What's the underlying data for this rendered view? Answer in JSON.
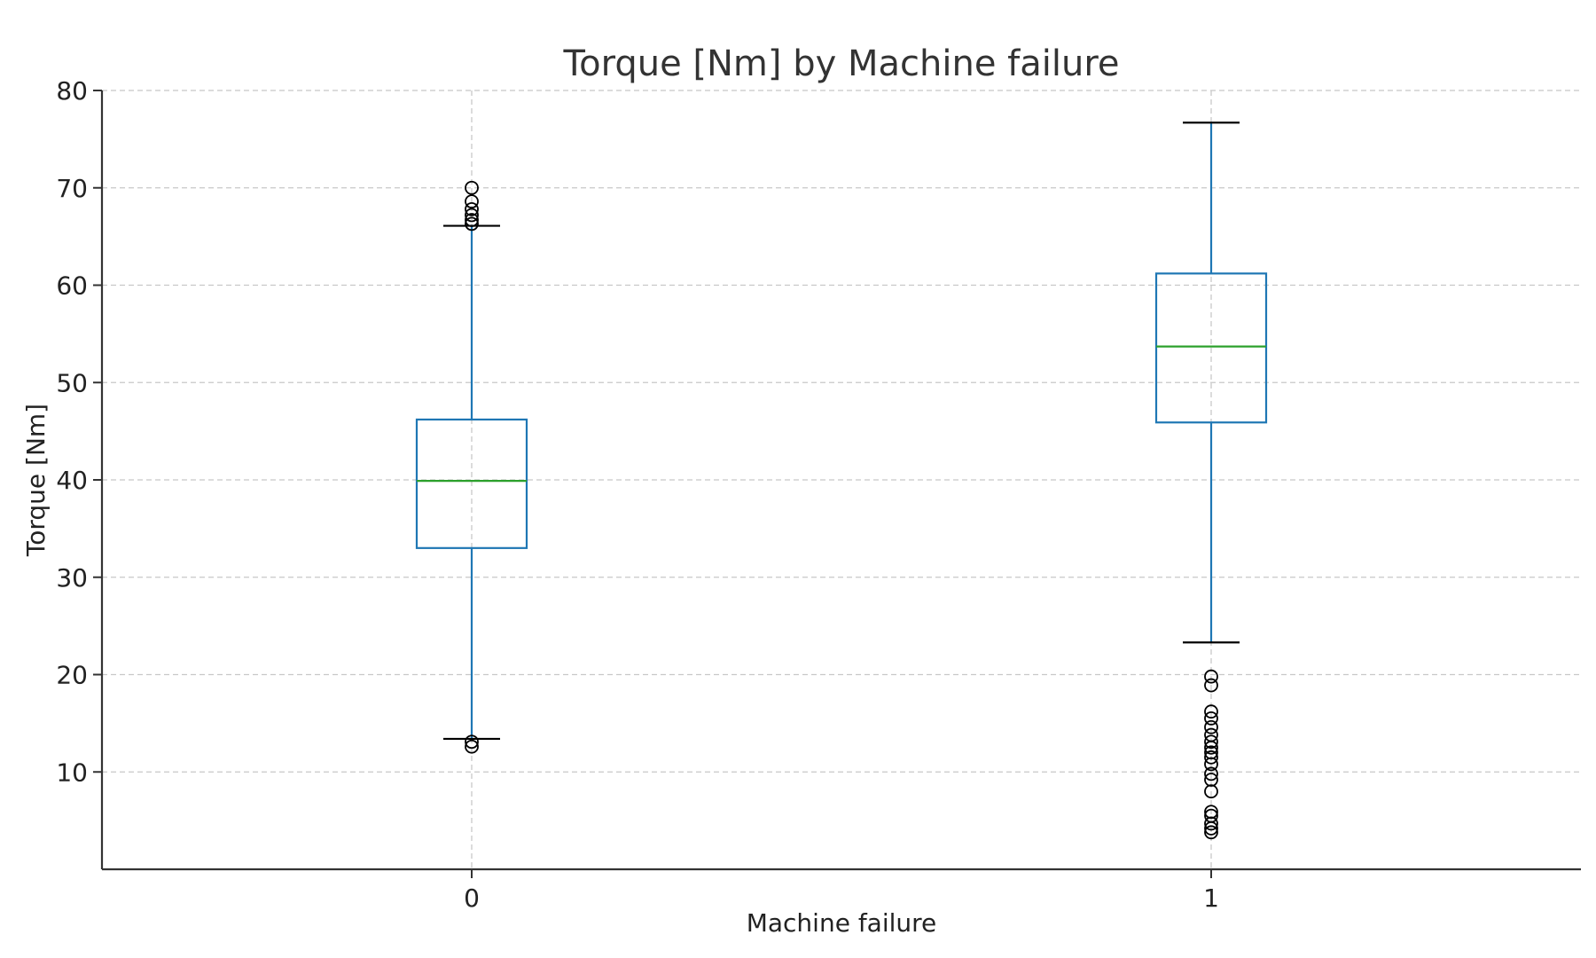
{
  "chart_data": {
    "type": "box",
    "title": "Torque [Nm] by Machine failure",
    "xlabel": "Machine failure",
    "ylabel": "Torque [Nm]",
    "ylim": [
      0,
      80
    ],
    "yticks": [
      10,
      20,
      30,
      40,
      50,
      60,
      70,
      80
    ],
    "grid": true,
    "categories": [
      "0",
      "1"
    ],
    "boxes": [
      {
        "category": "0",
        "whisker_low": 13.4,
        "q1": 33.0,
        "median": 39.9,
        "q3": 46.2,
        "whisker_high": 66.1,
        "outliers": [
          12.6,
          13.1,
          66.3,
          66.7,
          67.2,
          67.8,
          68.6,
          70.0
        ]
      },
      {
        "category": "1",
        "whisker_low": 23.3,
        "q1": 45.9,
        "median": 53.7,
        "q3": 61.2,
        "whisker_high": 76.7,
        "outliers": [
          3.8,
          4.2,
          4.7,
          5.5,
          5.9,
          8.0,
          9.2,
          9.8,
          10.8,
          11.5,
          12.0,
          12.5,
          13.1,
          13.8,
          14.6,
          15.5,
          16.2,
          18.9,
          19.8
        ]
      }
    ],
    "colors": {
      "box": "#1f77b4",
      "median": "#2ca02c",
      "whisker_cap": "#000000",
      "outlier": "#000000"
    }
  }
}
